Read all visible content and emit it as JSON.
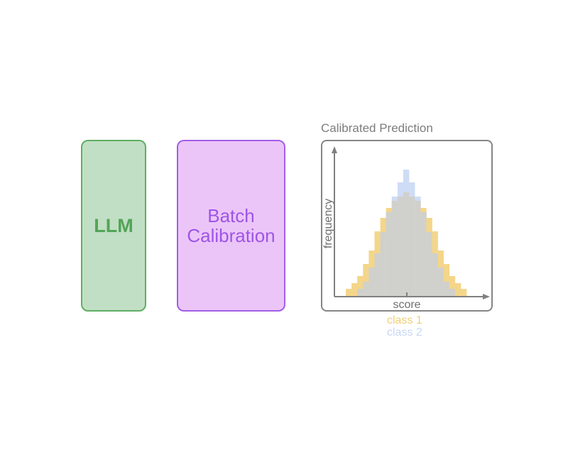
{
  "blocks": {
    "llm": "LLM",
    "calibration_line1": "Batch",
    "calibration_line2": "Calibration"
  },
  "plot": {
    "title": "Calibrated Prediction",
    "xlabel": "score",
    "ylabel": "frequency",
    "colors": {
      "class1": "#f4d68a",
      "class2": "#cfdcf6",
      "overlap": "#d0d0cc",
      "axis": "#808080"
    },
    "legend": [
      "class 1",
      "class 2"
    ],
    "class1": [
      10,
      18,
      28,
      45,
      64,
      91,
      110,
      124,
      134,
      140,
      146,
      140,
      134,
      124,
      110,
      91,
      64,
      45,
      28,
      18,
      10
    ],
    "class2": [
      0,
      0,
      10,
      20,
      40,
      60,
      90,
      118,
      140,
      160,
      178,
      160,
      140,
      118,
      90,
      60,
      40,
      20,
      10,
      0,
      0
    ]
  }
}
